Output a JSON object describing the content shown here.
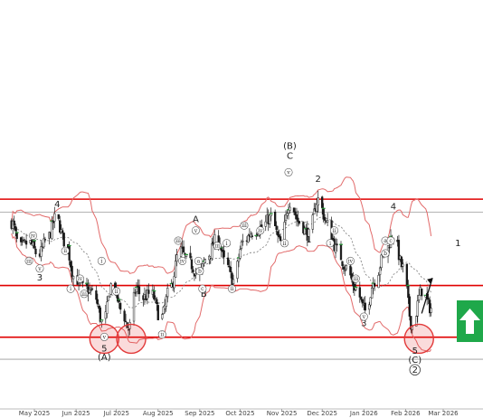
{
  "colors": {
    "background": "#ffffff",
    "candle_up": "#ffffff",
    "candle_down": "#1a1a1a",
    "candle_outline": "#1a1a1a",
    "resistance_line": "#e00000",
    "support_line": "#e00000",
    "bollinger_band": "#e26a6a",
    "moving_average": "#7a7a7a",
    "grey_level": "#9a9a9a",
    "highlight_circle": "#e23a3a",
    "signal_arrow_bg": "#1fa84a",
    "signal_arrow_fg": "#ffffff",
    "target_arrow": "#111111",
    "green_ticks": "#2a9a3a"
  },
  "signal": {
    "icon": "arrow-up-icon",
    "direction": "up",
    "target_icon": "diagonal-arrow-icon"
  },
  "chart_data": {
    "type": "candlestick",
    "title": "",
    "x_range": [
      "2025-04-14",
      "2026-03-31"
    ],
    "y_range_relative": [
      0,
      1
    ],
    "grid": false,
    "legend": "none",
    "x_ticks": [
      {
        "label": "May 2025",
        "date": "2025-05-01"
      },
      {
        "label": "Jun 2025",
        "date": "2025-06-01"
      },
      {
        "label": "Jul 2025",
        "date": "2025-07-01"
      },
      {
        "label": "Aug 2025",
        "date": "2025-08-01"
      },
      {
        "label": "Sep 2025",
        "date": "2025-09-01"
      },
      {
        "label": "Oct 2025",
        "date": "2025-10-01"
      },
      {
        "label": "Nov 2025",
        "date": "2025-11-01"
      },
      {
        "label": "Dec 2025",
        "date": "2025-12-01"
      },
      {
        "label": "Jan 2026",
        "date": "2026-01-01"
      },
      {
        "label": "Feb 2026",
        "date": "2026-02-01"
      },
      {
        "label": "Mar 2026",
        "date": "2026-03-01"
      }
    ],
    "levels": [
      {
        "name": "resistance-upper",
        "level": 0.771,
        "style": "red"
      },
      {
        "name": "resistance-mid",
        "level": 0.43,
        "style": "red"
      },
      {
        "name": "support-lower",
        "level": 0.226,
        "style": "red"
      },
      {
        "name": "grey-upper",
        "level": 0.72,
        "style": "grey"
      },
      {
        "name": "grey-lower",
        "level": 0.139,
        "style": "grey"
      }
    ],
    "price_path": [
      [
        "2025-04-14",
        0.68
      ],
      [
        "2025-04-20",
        0.58
      ],
      [
        "2025-04-27",
        0.6
      ],
      [
        "2025-05-04",
        0.55
      ],
      [
        "2025-05-11",
        0.62
      ],
      [
        "2025-05-17",
        0.7
      ],
      [
        "2025-05-24",
        0.6
      ],
      [
        "2025-05-31",
        0.46
      ],
      [
        "2025-06-07",
        0.42
      ],
      [
        "2025-06-14",
        0.4
      ],
      [
        "2025-06-21",
        0.28
      ],
      [
        "2025-06-28",
        0.44
      ],
      [
        "2025-07-05",
        0.33
      ],
      [
        "2025-07-10",
        0.26
      ],
      [
        "2025-07-16",
        0.42
      ],
      [
        "2025-07-20",
        0.38
      ],
      [
        "2025-07-27",
        0.4
      ],
      [
        "2025-08-03",
        0.3
      ],
      [
        "2025-08-10",
        0.42
      ],
      [
        "2025-08-17",
        0.57
      ],
      [
        "2025-08-24",
        0.52
      ],
      [
        "2025-08-31",
        0.47
      ],
      [
        "2025-09-07",
        0.55
      ],
      [
        "2025-09-14",
        0.62
      ],
      [
        "2025-09-20",
        0.52
      ],
      [
        "2025-09-26",
        0.45
      ],
      [
        "2025-10-03",
        0.6
      ],
      [
        "2025-10-10",
        0.64
      ],
      [
        "2025-10-17",
        0.66
      ],
      [
        "2025-10-24",
        0.7
      ],
      [
        "2025-10-31",
        0.6
      ],
      [
        "2025-11-07",
        0.76
      ],
      [
        "2025-11-14",
        0.68
      ],
      [
        "2025-11-21",
        0.63
      ],
      [
        "2025-11-28",
        0.77
      ],
      [
        "2025-12-05",
        0.67
      ],
      [
        "2025-12-12",
        0.57
      ],
      [
        "2025-12-19",
        0.5
      ],
      [
        "2025-12-26",
        0.42
      ],
      [
        "2026-01-02",
        0.33
      ],
      [
        "2026-01-09",
        0.45
      ],
      [
        "2026-01-16",
        0.55
      ],
      [
        "2026-01-23",
        0.63
      ],
      [
        "2026-01-30",
        0.5
      ],
      [
        "2026-02-06",
        0.27
      ],
      [
        "2026-02-13",
        0.41
      ],
      [
        "2026-02-20",
        0.34
      ]
    ],
    "wave_labels": [
      {
        "text": "4",
        "date": "2025-05-18",
        "level": 0.74,
        "kind": "digit"
      },
      {
        "text": "3",
        "date": "2025-05-05",
        "level": 0.45,
        "kind": "digit"
      },
      {
        "text": "5",
        "date": "2025-06-22",
        "level": 0.17,
        "kind": "digit"
      },
      {
        "text": "(A)",
        "date": "2025-06-22",
        "level": 0.135,
        "kind": "digit"
      },
      {
        "text": "A",
        "date": "2025-08-29",
        "level": 0.68,
        "kind": "digit"
      },
      {
        "text": "B",
        "date": "2025-09-04",
        "level": 0.385,
        "kind": "digit"
      },
      {
        "text": "(B)",
        "date": "2025-11-07",
        "level": 0.97,
        "kind": "digit"
      },
      {
        "text": "C",
        "date": "2025-11-07",
        "level": 0.93,
        "kind": "digit"
      },
      {
        "text": "2",
        "date": "2025-11-28",
        "level": 0.84,
        "kind": "digit"
      },
      {
        "text": "1",
        "date": "2025-11-21",
        "level": 0.6,
        "kind": "digit"
      },
      {
        "text": "3",
        "date": "2026-01-01",
        "level": 0.27,
        "kind": "digit"
      },
      {
        "text": "4",
        "date": "2026-01-23",
        "level": 0.73,
        "kind": "digit"
      },
      {
        "text": "5",
        "date": "2026-02-08",
        "level": 0.16,
        "kind": "digit"
      },
      {
        "text": "(C)",
        "date": "2026-02-08",
        "level": 0.125,
        "kind": "digit"
      },
      {
        "text": "2",
        "date": "2026-02-08",
        "level": 0.085,
        "kind": "circled"
      },
      {
        "text": "1",
        "date": "2026-03-12",
        "level": 0.585,
        "kind": "digit"
      },
      {
        "text": "iv",
        "date": "2025-04-30",
        "level": 0.62,
        "kind": "roman"
      },
      {
        "text": "iii",
        "date": "2025-04-27",
        "level": 0.52,
        "kind": "roman"
      },
      {
        "text": "v",
        "date": "2025-05-05",
        "level": 0.49,
        "kind": "roman"
      },
      {
        "text": "ii",
        "date": "2025-05-24",
        "level": 0.56,
        "kind": "roman"
      },
      {
        "text": "i",
        "date": "2025-05-28",
        "level": 0.41,
        "kind": "roman"
      },
      {
        "text": "iv",
        "date": "2025-06-04",
        "level": 0.45,
        "kind": "roman"
      },
      {
        "text": "iii",
        "date": "2025-06-07",
        "level": 0.39,
        "kind": "roman"
      },
      {
        "text": "i",
        "date": "2025-06-20",
        "level": 0.52,
        "kind": "roman"
      },
      {
        "text": "v",
        "date": "2025-06-22",
        "level": 0.22,
        "kind": "roman"
      },
      {
        "text": "ii",
        "date": "2025-07-01",
        "level": 0.4,
        "kind": "roman"
      },
      {
        "text": "iii",
        "date": "2025-08-16",
        "level": 0.6,
        "kind": "roman"
      },
      {
        "text": "iv",
        "date": "2025-08-19",
        "level": 0.52,
        "kind": "roman"
      },
      {
        "text": "ii",
        "date": "2025-08-04",
        "level": 0.23,
        "kind": "roman"
      },
      {
        "text": "v",
        "date": "2025-08-29",
        "level": 0.64,
        "kind": "roman"
      },
      {
        "text": "a",
        "date": "2025-08-31",
        "level": 0.52,
        "kind": "roman"
      },
      {
        "text": "b",
        "date": "2025-09-01",
        "level": 0.48,
        "kind": "roman"
      },
      {
        "text": "c",
        "date": "2025-09-03",
        "level": 0.41,
        "kind": "roman"
      },
      {
        "text": "iii",
        "date": "2025-09-14",
        "level": 0.58,
        "kind": "roman"
      },
      {
        "text": "i",
        "date": "2025-09-21",
        "level": 0.59,
        "kind": "roman"
      },
      {
        "text": "ii",
        "date": "2025-09-25",
        "level": 0.41,
        "kind": "roman"
      },
      {
        "text": "iii",
        "date": "2025-10-04",
        "level": 0.66,
        "kind": "roman"
      },
      {
        "text": "iv",
        "date": "2025-10-16",
        "level": 0.64,
        "kind": "roman"
      },
      {
        "text": "ii",
        "date": "2025-11-03",
        "level": 0.59,
        "kind": "roman"
      },
      {
        "text": "v",
        "date": "2025-11-06",
        "level": 0.87,
        "kind": "roman"
      },
      {
        "text": "ii",
        "date": "2025-12-10",
        "level": 0.64,
        "kind": "roman"
      },
      {
        "text": "i",
        "date": "2025-12-07",
        "level": 0.59,
        "kind": "roman"
      },
      {
        "text": "iv",
        "date": "2025-12-22",
        "level": 0.52,
        "kind": "roman"
      },
      {
        "text": "iii",
        "date": "2025-12-26",
        "level": 0.45,
        "kind": "roman"
      },
      {
        "text": "v",
        "date": "2026-01-01",
        "level": 0.3,
        "kind": "roman"
      },
      {
        "text": "a",
        "date": "2026-01-17",
        "level": 0.6,
        "kind": "roman"
      },
      {
        "text": "b",
        "date": "2026-01-17",
        "level": 0.55,
        "kind": "roman"
      },
      {
        "text": "c",
        "date": "2026-01-21",
        "level": 0.6,
        "kind": "roman"
      }
    ],
    "circles": [
      {
        "date": "2025-06-22",
        "level": 0.22
      },
      {
        "date": "2025-07-12",
        "level": 0.22
      },
      {
        "date": "2026-02-11",
        "level": 0.22
      }
    ]
  }
}
